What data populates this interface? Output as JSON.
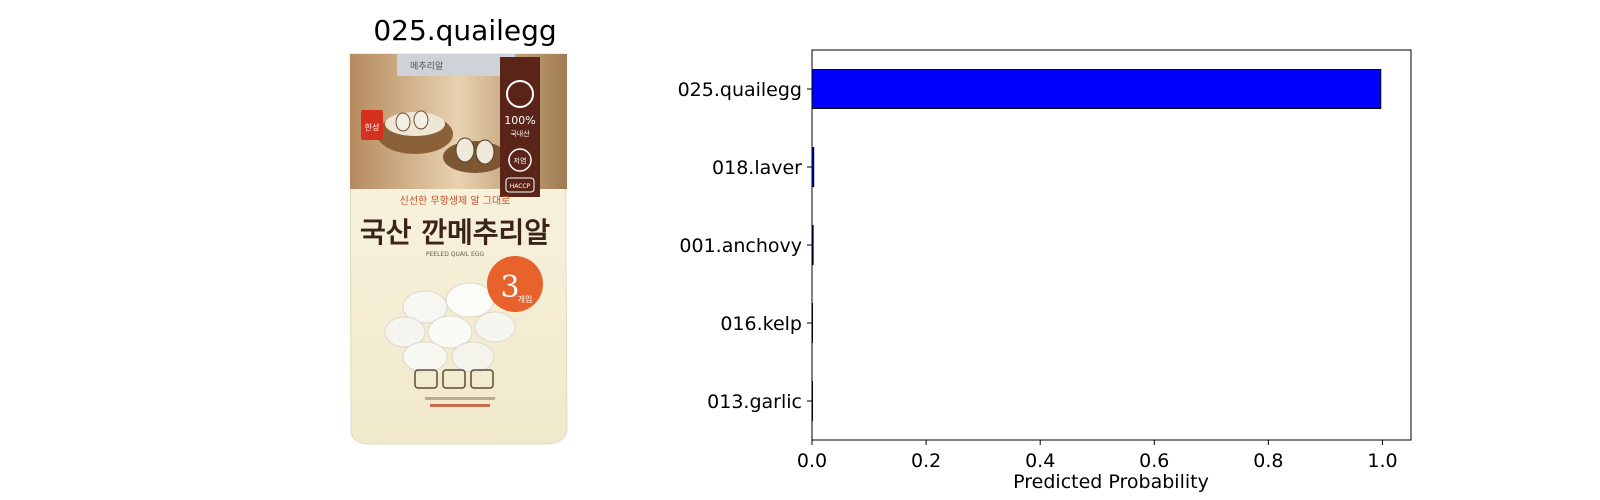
{
  "image_panel": {
    "title": "025.quailegg",
    "package_text": {
      "top_tab": "메추리알",
      "tagline": "신선한 무항생제 알 그대로",
      "main": "국산 깐메추리알",
      "sub": "PEELED QUAIL EGG",
      "badge_100": "100%",
      "badge_100_sub": "국내산",
      "badge_low": "저염",
      "badge_bottom": "HACCP",
      "sticker_big": "3",
      "sticker_small": "개입",
      "brand": "한성"
    }
  },
  "chart_data": {
    "type": "bar",
    "orientation": "horizontal",
    "categories": [
      "025.quailegg",
      "018.laver",
      "001.anchovy",
      "016.kelp",
      "013.garlic"
    ],
    "values": [
      0.997,
      0.003,
      0.002,
      0.0005,
      0.0004
    ],
    "xlabel": "Predicted Probability",
    "ylabel": "",
    "xlim": [
      0,
      1.05
    ],
    "xticks": [
      "0.0",
      "0.2",
      "0.4",
      "0.6",
      "0.8",
      "1.0"
    ],
    "xtick_values": [
      0,
      0.2,
      0.4,
      0.6,
      0.8,
      1.0
    ],
    "grid": false,
    "bar_color": "#0000ff",
    "edge_color": "#000000"
  }
}
